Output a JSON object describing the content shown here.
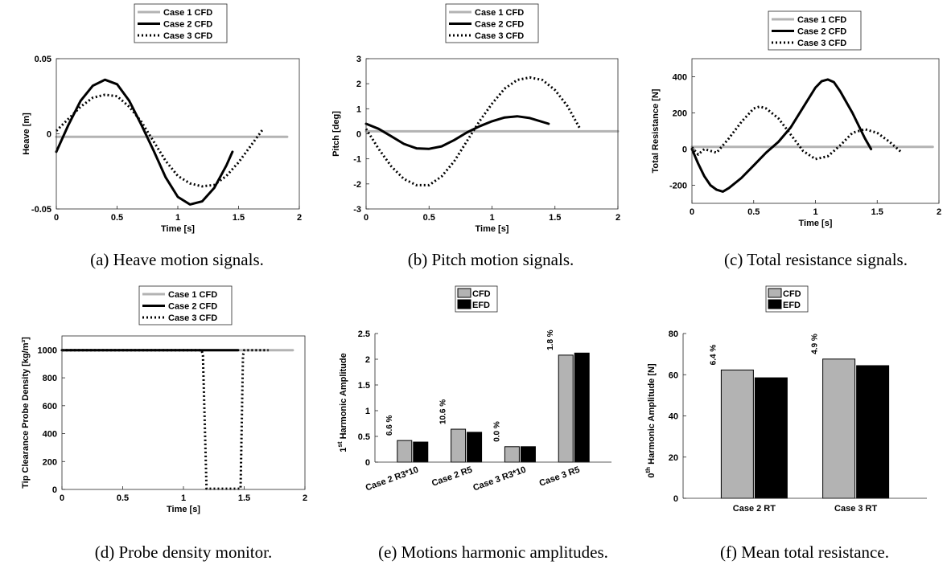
{
  "colors": {
    "case1": "#b3b3b3",
    "case2": "#000000",
    "cfd": "#b3b3b3",
    "efd": "#000000"
  },
  "chart_data": [
    {
      "id": "a",
      "type": "line",
      "caption": "(a) Heave motion signals.",
      "xlabel": "Time [s]",
      "ylabel": "Heave [m]",
      "xlim": [
        0,
        2
      ],
      "ylim": [
        -0.05,
        0.05
      ],
      "xticks": [
        0,
        0.5,
        1,
        1.5,
        2
      ],
      "xticklabels": [
        "0",
        "0.5",
        "1",
        "1.5",
        "2"
      ],
      "yticks": [
        -0.05,
        0,
        0.05
      ],
      "yticklabels": [
        "-0.05",
        "0",
        "0.05"
      ],
      "legend": [
        "Case 1 CFD",
        "Case 2 CFD",
        "Case 3 CFD"
      ],
      "series": [
        {
          "name": "Case 1 CFD",
          "style": "gray",
          "x": [
            0,
            1.9
          ],
          "y": [
            -0.002,
            -0.002
          ]
        },
        {
          "name": "Case 2 CFD",
          "style": "black",
          "x": [
            0,
            0.1,
            0.2,
            0.3,
            0.4,
            0.5,
            0.6,
            0.7,
            0.8,
            0.9,
            1.0,
            1.1,
            1.2,
            1.3,
            1.4,
            1.45
          ],
          "y": [
            -0.012,
            0.006,
            0.022,
            0.032,
            0.036,
            0.033,
            0.022,
            0.006,
            -0.011,
            -0.029,
            -0.042,
            -0.047,
            -0.045,
            -0.036,
            -0.021,
            -0.012
          ]
        },
        {
          "name": "Case 3 CFD",
          "style": "dotted",
          "x": [
            0,
            0.1,
            0.2,
            0.3,
            0.4,
            0.5,
            0.6,
            0.7,
            0.8,
            0.9,
            1.0,
            1.1,
            1.2,
            1.3,
            1.4,
            1.5,
            1.6,
            1.7
          ],
          "y": [
            0.002,
            0.01,
            0.018,
            0.024,
            0.026,
            0.025,
            0.018,
            0.008,
            -0.005,
            -0.018,
            -0.028,
            -0.033,
            -0.035,
            -0.034,
            -0.028,
            -0.019,
            -0.008,
            0.003
          ]
        }
      ]
    },
    {
      "id": "b",
      "type": "line",
      "caption": "(b) Pitch motion signals.",
      "xlabel": "Time [s]",
      "ylabel": "Pitch [deg]",
      "xlim": [
        0,
        2
      ],
      "ylim": [
        -3,
        3
      ],
      "xticks": [
        0,
        0.5,
        1,
        1.5,
        2
      ],
      "xticklabels": [
        "0",
        "0.5",
        "1",
        "1.5",
        "2"
      ],
      "yticks": [
        -3,
        -2,
        -1,
        0,
        1,
        2,
        3
      ],
      "yticklabels": [
        "-3",
        "-2",
        "-1",
        "0",
        "1",
        "2",
        "3"
      ],
      "legend": [
        "Case 1 CFD",
        "Case 2 CFD",
        "Case 3 CFD"
      ],
      "series": [
        {
          "name": "Case 1 CFD",
          "style": "gray",
          "x": [
            0,
            2.0
          ],
          "y": [
            0.1,
            0.1
          ]
        },
        {
          "name": "Case 2 CFD",
          "style": "black",
          "x": [
            0,
            0.1,
            0.2,
            0.3,
            0.4,
            0.5,
            0.6,
            0.7,
            0.8,
            0.9,
            1.0,
            1.1,
            1.2,
            1.3,
            1.45
          ],
          "y": [
            0.4,
            0.2,
            -0.1,
            -0.4,
            -0.58,
            -0.6,
            -0.5,
            -0.25,
            0.05,
            0.3,
            0.5,
            0.65,
            0.7,
            0.63,
            0.4
          ]
        },
        {
          "name": "Case 3 CFD",
          "style": "dotted",
          "x": [
            0,
            0.1,
            0.2,
            0.3,
            0.4,
            0.5,
            0.6,
            0.7,
            0.8,
            0.9,
            1.0,
            1.1,
            1.2,
            1.3,
            1.4,
            1.5,
            1.6,
            1.7
          ],
          "y": [
            0.2,
            -0.6,
            -1.3,
            -1.8,
            -2.05,
            -2.05,
            -1.7,
            -1.1,
            -0.3,
            0.5,
            1.2,
            1.8,
            2.15,
            2.25,
            2.15,
            1.75,
            1.1,
            0.2
          ]
        }
      ]
    },
    {
      "id": "c",
      "type": "line",
      "caption": "(c) Total resistance signals.",
      "xlabel": "Time [s]",
      "ylabel": "Total Resistance [N]",
      "xlim": [
        0,
        2
      ],
      "ylim": [
        -300,
        500
      ],
      "xticks": [
        0,
        0.5,
        1,
        1.5,
        2
      ],
      "xticklabels": [
        "0",
        "0.5",
        "1",
        "1.5",
        "2"
      ],
      "yticks": [
        -200,
        0,
        200,
        400
      ],
      "yticklabels": [
        "-200",
        "0",
        "200",
        "400"
      ],
      "legend": [
        "Case 1 CFD",
        "Case 2 CFD",
        "Case 3 CFD"
      ],
      "series": [
        {
          "name": "Case 1 CFD",
          "style": "gray",
          "x": [
            0,
            1.95
          ],
          "y": [
            12,
            12
          ]
        },
        {
          "name": "Case 2 CFD",
          "style": "black",
          "x": [
            0,
            0.05,
            0.1,
            0.15,
            0.2,
            0.25,
            0.3,
            0.4,
            0.5,
            0.6,
            0.7,
            0.8,
            0.9,
            1.0,
            1.05,
            1.1,
            1.15,
            1.2,
            1.3,
            1.4,
            1.45
          ],
          "y": [
            0,
            -80,
            -150,
            -200,
            -225,
            -235,
            -215,
            -160,
            -90,
            -20,
            40,
            120,
            230,
            340,
            375,
            385,
            370,
            320,
            200,
            60,
            0
          ]
        },
        {
          "name": "Case 3 CFD",
          "style": "dotted",
          "x": [
            0,
            0.05,
            0.1,
            0.2,
            0.3,
            0.4,
            0.5,
            0.55,
            0.6,
            0.7,
            0.8,
            0.9,
            1.0,
            1.1,
            1.2,
            1.3,
            1.4,
            1.5,
            1.6,
            1.7
          ],
          "y": [
            10,
            -30,
            0,
            -20,
            60,
            150,
            225,
            235,
            225,
            170,
            80,
            -10,
            -55,
            -40,
            20,
            90,
            110,
            90,
            40,
            -20
          ]
        }
      ]
    },
    {
      "id": "d",
      "type": "line",
      "caption": "(d) Probe density monitor.",
      "xlabel": "Time [s]",
      "ylabel": "Tip Clearance Probe Density [kg/m³]",
      "xlim": [
        0,
        2
      ],
      "ylim": [
        0,
        1100
      ],
      "xticks": [
        0,
        0.5,
        1,
        1.5,
        2
      ],
      "xticklabels": [
        "0",
        "0.5",
        "1",
        "1.5",
        "2"
      ],
      "yticks": [
        0,
        200,
        400,
        600,
        800,
        1000
      ],
      "yticklabels": [
        "0",
        "200",
        "400",
        "600",
        "800",
        "1000"
      ],
      "legend": [
        "Case 1 CFD",
        "Case 2 CFD",
        "Case 3 CFD"
      ],
      "series": [
        {
          "name": "Case 1 CFD",
          "style": "gray",
          "x": [
            0,
            1.9
          ],
          "y": [
            998,
            998
          ]
        },
        {
          "name": "Case 2 CFD",
          "style": "black",
          "x": [
            0,
            1.45
          ],
          "y": [
            998,
            998
          ]
        },
        {
          "name": "Case 3 CFD",
          "style": "dotted",
          "x": [
            0,
            1.15,
            1.16,
            1.19,
            1.47,
            1.49,
            1.5,
            1.7
          ],
          "y": [
            998,
            998,
            960,
            5,
            5,
            960,
            998,
            998
          ]
        }
      ]
    },
    {
      "id": "e",
      "type": "bar",
      "caption": "(e) Motions harmonic amplitudes.",
      "ylabel_sup": "st",
      "ylabel_pre": "1",
      "ylabel_main": " Harmonic Amplitude",
      "ylim": [
        0,
        2.5
      ],
      "yticks": [
        0,
        0.5,
        1,
        1.5,
        2,
        2.5
      ],
      "yticklabels": [
        "0",
        "0.5",
        "1",
        "1.5",
        "2",
        "2.5"
      ],
      "categories": [
        "Case 2 R3*10",
        "Case 2 R5",
        "Case 3 R3*10",
        "Case 3 R5"
      ],
      "legend": [
        "CFD",
        "EFD"
      ],
      "series": [
        {
          "name": "CFD",
          "values": [
            0.42,
            0.64,
            0.3,
            2.08
          ]
        },
        {
          "name": "EFD",
          "values": [
            0.39,
            0.58,
            0.3,
            2.12
          ]
        }
      ],
      "annotations": [
        "6.6 %",
        "10.6 %",
        "0.0 %",
        "1.8 %"
      ]
    },
    {
      "id": "f",
      "type": "bar",
      "caption": "(f) Mean total resistance.",
      "ylabel_sup": "th",
      "ylabel_pre": "0",
      "ylabel_main": " Harmonic Amplitude [N]",
      "ylim": [
        0,
        80
      ],
      "yticks": [
        0,
        20,
        40,
        60,
        80
      ],
      "yticklabels": [
        "0",
        "20",
        "40",
        "60",
        "80"
      ],
      "categories": [
        "Case 2 RT",
        "Case 3 RT"
      ],
      "legend": [
        "CFD",
        "EFD"
      ],
      "series": [
        {
          "name": "CFD",
          "values": [
            62.3,
            67.6
          ]
        },
        {
          "name": "EFD",
          "values": [
            58.5,
            64.4
          ]
        }
      ],
      "annotations": [
        "6.4 %",
        "4.9 %"
      ]
    }
  ]
}
